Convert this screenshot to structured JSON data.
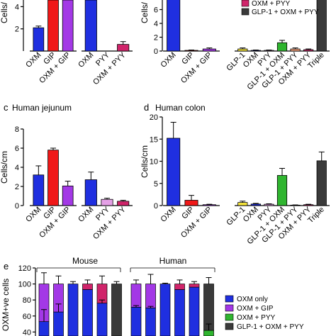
{
  "colors": {
    "OXM": "#1f2fe0",
    "GIP": "#f01818",
    "OXM+GIP": "#a338e6",
    "PYY": "#e4a0e6",
    "OXM+PYY": "#d0246a",
    "GLP-1": "#f5e43a",
    "GLP-1+OXM": "#2fb52f",
    "GLP-1+PYY": "#f3a07a",
    "GLP-1+OXM+PYY": "#3a3a3a",
    "GLP-1+OXM+PYY top": "#555555"
  },
  "chart_data": [
    {
      "id": "a-partial",
      "type": "bar",
      "ylabel": "Cells/",
      "yticks": [
        2,
        4
      ],
      "ylim": [
        0,
        4.6
      ],
      "groups": [
        {
          "categories": [
            "OXM",
            "GIP",
            "OXM + GIP"
          ],
          "values": [
            2.1,
            4.6,
            4.6
          ],
          "errors": [
            0.15,
            0,
            0
          ],
          "colors": [
            "OXM",
            "GIP",
            "OXM+GIP"
          ]
        },
        {
          "categories": [
            "OXM",
            "PYY",
            "OXM + PYY"
          ],
          "values": [
            4.6,
            0,
            0.6
          ],
          "errors": [
            0,
            0,
            0.25
          ],
          "colors": [
            "OXM",
            "PYY",
            "OXM+PYY"
          ]
        }
      ]
    },
    {
      "id": "b-partial",
      "type": "bar",
      "ylabel": "Cells/",
      "yticks": [
        0,
        2,
        4,
        6
      ],
      "ylim": [
        0,
        8
      ],
      "legend": [
        "OXM + PYY",
        "GLP-1 + OXM + PYY"
      ],
      "legend_colors": [
        "OXM+PYY",
        "GLP-1+OXM+PYY"
      ],
      "groups": [
        {
          "categories": [
            "OXM",
            "GIP",
            "OXM + GIP"
          ],
          "values": [
            8,
            0.1,
            0.3
          ],
          "errors": [
            0,
            0.05,
            0.15
          ],
          "colors": [
            "OXM",
            "GIP",
            "OXM+GIP"
          ]
        },
        {
          "categories": [
            "GLP-1",
            "OXM",
            "PYY",
            "GLP-1 + OXM",
            "GLP-1 + PYY",
            "OXM + PYY",
            "Triple"
          ],
          "values": [
            0.3,
            0.1,
            0.1,
            1.2,
            0.3,
            0.2,
            8
          ],
          "errors": [
            0.15,
            0.05,
            0.05,
            0.35,
            0.15,
            0.1,
            0
          ],
          "colors": [
            "GLP-1",
            "OXM",
            "PYY",
            "GLP-1+OXM",
            "GLP-1+PYY",
            "OXM+PYY",
            "GLP-1+OXM+PYY"
          ]
        }
      ]
    },
    {
      "id": "c",
      "type": "bar",
      "panel_letter": "c",
      "title": "Human jejunum",
      "ylabel": "Cells/cm",
      "yticks": [
        0,
        2,
        4,
        6,
        8
      ],
      "ylim": [
        0,
        8
      ],
      "groups": [
        {
          "categories": [
            "OXM",
            "GIP",
            "OXM + GIP"
          ],
          "values": [
            3.2,
            5.8,
            2.05
          ],
          "errors": [
            0.95,
            0.2,
            0.5
          ],
          "colors": [
            "OXM",
            "GIP",
            "OXM+GIP"
          ]
        },
        {
          "categories": [
            "OXM",
            "PYY",
            "OXM + PYY"
          ],
          "values": [
            2.7,
            0.65,
            0.45
          ],
          "errors": [
            0.8,
            0.12,
            0.1
          ],
          "colors": [
            "OXM",
            "PYY",
            "OXM+PYY"
          ]
        }
      ]
    },
    {
      "id": "d",
      "type": "bar",
      "panel_letter": "d",
      "title": "Human colon",
      "ylabel": "Cells/cm",
      "yticks": [
        0,
        5,
        10,
        15,
        20
      ],
      "ylim": [
        0,
        20
      ],
      "groups": [
        {
          "categories": [
            "OXM",
            "GIP",
            "OXM + GIP"
          ],
          "values": [
            15.2,
            1.2,
            0.2
          ],
          "errors": [
            3.6,
            1.1,
            0.1
          ],
          "colors": [
            "OXM",
            "GIP",
            "OXM+GIP"
          ]
        },
        {
          "categories": [
            "GLP-1",
            "OXM",
            "PYY",
            "GLP-1 + OXM",
            "GLP-1 + PYY",
            "OXM + PYY",
            "Triple"
          ],
          "values": [
            0.7,
            0.35,
            0.3,
            6.8,
            0.1,
            0.2,
            10.1
          ],
          "errors": [
            0.3,
            0.15,
            0.1,
            1.6,
            0.05,
            0.1,
            2.0
          ],
          "colors": [
            "GLP-1",
            "OXM",
            "PYY",
            "GLP-1+OXM",
            "GLP-1+PYY",
            "OXM+PYY",
            "GLP-1+OXM+PYY"
          ]
        }
      ]
    },
    {
      "id": "e",
      "type": "bar",
      "stacked": true,
      "panel_letter": "e",
      "ylabel": "OXM+ve cells",
      "yticks": [
        40,
        60,
        80,
        100,
        120
      ],
      "ylim": [
        35,
        120
      ],
      "group_labels": [
        "Mouse",
        "Human"
      ],
      "legend": [
        "OXM only",
        "OXM + GIP",
        "OXM + PYY",
        "GLP-1 + OXM + PYY"
      ],
      "legend_colors": [
        "OXM",
        "OXM+GIP",
        "GLP-1+OXM",
        "GLP-1+OXM+PYY"
      ],
      "groups": [
        {
          "bars": [
            {
              "segments": [
                {
                  "value": 53,
                  "color": "OXM"
                },
                {
                  "value": 47,
                  "color": "OXM+GIP"
                }
              ],
              "errors": [
                {
                  "at": 53,
                  "err": 15
                },
                {
                  "at": 100,
                  "err": 14
                }
              ]
            },
            {
              "segments": [
                {
                  "value": 65,
                  "color": "OXM"
                },
                {
                  "value": 35,
                  "color": "OXM+GIP"
                }
              ],
              "errors": [
                {
                  "at": 65,
                  "err": 10
                },
                {
                  "at": 100,
                  "err": 10
                }
              ]
            },
            {
              "segments": [
                {
                  "value": 100,
                  "color": "OXM"
                }
              ],
              "errors": [
                {
                  "at": 100,
                  "err": 3
                }
              ]
            },
            {
              "segments": [
                {
                  "value": 93,
                  "color": "OXM"
                },
                {
                  "value": 7,
                  "color": "OXM+PYY"
                }
              ],
              "errors": [
                {
                  "at": 100,
                  "err": 5
                }
              ]
            },
            {
              "segments": [
                {
                  "value": 76,
                  "color": "OXM"
                },
                {
                  "value": 24,
                  "color": "OXM+PYY"
                }
              ],
              "errors": [
                {
                  "at": 76,
                  "err": 4
                },
                {
                  "at": 100,
                  "err": 10
                }
              ]
            },
            {
              "segments": [
                {
                  "value": 100,
                  "color": "GLP-1+OXM+PYY"
                }
              ],
              "errors": [
                {
                  "at": 100,
                  "err": 3
                }
              ]
            }
          ]
        },
        {
          "bars": [
            {
              "segments": [
                {
                  "value": 71,
                  "color": "OXM"
                },
                {
                  "value": 29,
                  "color": "OXM+GIP"
                }
              ],
              "errors": [
                {
                  "at": 71,
                  "err": 2
                },
                {
                  "at": 100,
                  "err": 5
                }
              ]
            },
            {
              "segments": [
                {
                  "value": 70,
                  "color": "OXM"
                },
                {
                  "value": 30,
                  "color": "OXM+GIP"
                }
              ],
              "errors": [
                {
                  "at": 70,
                  "err": 2
                },
                {
                  "at": 100,
                  "err": 12
                }
              ]
            },
            {
              "segments": [
                {
                  "value": 100,
                  "color": "OXM"
                }
              ],
              "errors": [
                {
                  "at": 100,
                  "err": 1
                }
              ]
            },
            {
              "segments": [
                {
                  "value": 93,
                  "color": "OXM"
                },
                {
                  "value": 7,
                  "color": "OXM+PYY"
                }
              ],
              "errors": [
                {
                  "at": 100,
                  "err": 5
                }
              ]
            },
            {
              "segments": [
                {
                  "value": 96,
                  "color": "OXM"
                },
                {
                  "value": 4,
                  "color": "OXM+PYY"
                }
              ],
              "errors": [
                {
                  "at": 100,
                  "err": 3
                }
              ]
            },
            {
              "segments": [
                {
                  "value": 42,
                  "color": "GLP-1+OXM"
                },
                {
                  "value": 58,
                  "color": "GLP-1+OXM+PYY"
                }
              ],
              "errors": [
                {
                  "at": 42,
                  "err": 8
                },
                {
                  "at": 100,
                  "err": 8
                }
              ]
            }
          ]
        }
      ]
    }
  ]
}
